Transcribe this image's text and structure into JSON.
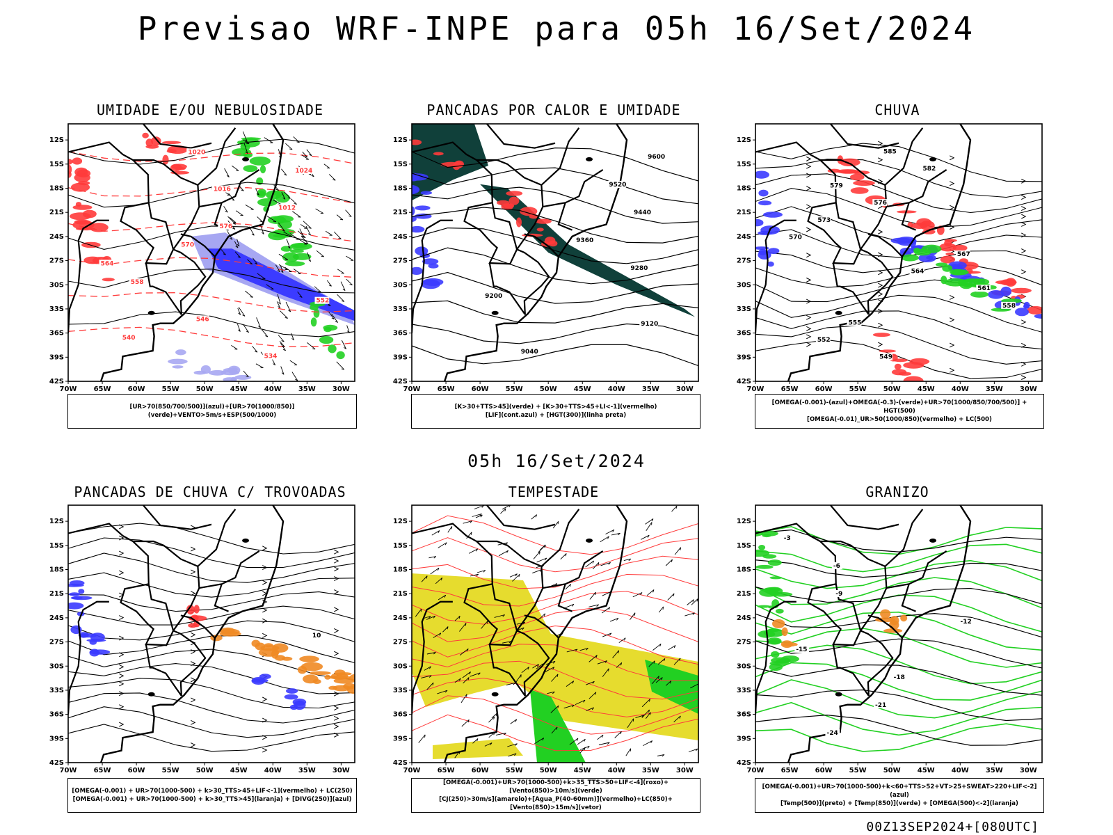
{
  "main_title": "Previsao WRF-INPE  para 05h 16/Set/2024",
  "mid_title": "05h 16/Set/2024",
  "footer": "00Z13SEP2024+[080UTC]",
  "chart_data": [
    {
      "type": "map",
      "title": "UMIDADE E/OU NEBULOSIDADE",
      "x_ticks": [
        "70W",
        "65W",
        "60W",
        "55W",
        "50W",
        "45W",
        "40W",
        "35W",
        "30W"
      ],
      "y_ticks": [
        "12S",
        "15S",
        "18S",
        "21S",
        "24S",
        "27S",
        "30S",
        "33S",
        "36S",
        "39S",
        "42S"
      ],
      "contour_labels": [
        "1020",
        "1024",
        "1016",
        "1012",
        "576",
        "570",
        "564",
        "558",
        "552",
        "546",
        "540",
        "534"
      ],
      "legend": [
        "[UR>70(850/700/500)](azul)+[UR>70(1000/850)](verde)+VENTO>5m/s+ESP(500/1000)"
      ]
    },
    {
      "type": "map",
      "title": "PANCADAS POR CALOR E UMIDADE",
      "x_ticks": [
        "70W",
        "65W",
        "60W",
        "55W",
        "50W",
        "45W",
        "40W",
        "35W",
        "30W"
      ],
      "y_ticks": [
        "12S",
        "15S",
        "18S",
        "21S",
        "24S",
        "27S",
        "30S",
        "33S",
        "36S",
        "39S",
        "42S"
      ],
      "contour_labels": [
        "9600",
        "9520",
        "9440",
        "9360",
        "9280",
        "9200",
        "9120",
        "9040"
      ],
      "legend": [
        "[K>30+TTS>45](verde) + [K>30+TTS>45+LI<-1](vermelho)",
        "[LIF](cont.azul) + [HGT(300)](linha preta)"
      ]
    },
    {
      "type": "map",
      "title": "CHUVA",
      "x_ticks": [
        "70W",
        "65W",
        "60W",
        "55W",
        "50W",
        "45W",
        "40W",
        "35W",
        "30W"
      ],
      "y_ticks": [
        "12S",
        "15S",
        "18S",
        "21S",
        "24S",
        "27S",
        "30S",
        "33S",
        "36S",
        "39S",
        "42S"
      ],
      "contour_labels": [
        "585",
        "582",
        "579",
        "576",
        "573",
        "570",
        "567",
        "564",
        "561",
        "558",
        "555",
        "552",
        "549"
      ],
      "legend": [
        "[OMEGA(-0.001)-(azul)+OMEGA(-0.3)-(verde)+UR>70(1000/850/700/500)] + HGT(500)",
        "[OMEGA(-0.01)_UR>50(1000/850)(vermelho) + LC(500)"
      ]
    },
    {
      "type": "map",
      "title": "PANCADAS DE CHUVA C/ TROVOADAS",
      "x_ticks": [
        "70W",
        "65W",
        "60W",
        "55W",
        "50W",
        "45W",
        "40W",
        "35W",
        "30W"
      ],
      "y_ticks": [
        "12S",
        "15S",
        "18S",
        "21S",
        "24S",
        "27S",
        "30S",
        "33S",
        "36S",
        "39S",
        "42S"
      ],
      "contour_labels": [
        "10"
      ],
      "legend": [
        "[OMEGA(-0.001) + UR>70(1000-500) + k>30_TTS>45+LIF<-1](vermelho) + LC(250)",
        "[OMEGA(-0.001) + UR>70(1000-500) + k>30_TTS>45](laranja) + [DIVG(250)](azul)"
      ]
    },
    {
      "type": "map",
      "title": "TEMPESTADE",
      "x_ticks": [
        "70W",
        "65W",
        "60W",
        "55W",
        "50W",
        "45W",
        "40W",
        "35W",
        "30W"
      ],
      "y_ticks": [
        "12S",
        "15S",
        "18S",
        "21S",
        "24S",
        "27S",
        "30S",
        "33S",
        "36S",
        "39S",
        "42S"
      ],
      "contour_labels": [],
      "legend": [
        "[OMEGA(-0.001)+UR>70(1000-500)+k>35_TTS>50+LIF<-4](roxo)+[Vento(850)>10m/s](verde)",
        "[CJ(250)>30m/s](amarelo)+[Agua_P(40-60mm)](vermelho)+LC(850)+[Vento(850)>15m/s](vetor)"
      ]
    },
    {
      "type": "map",
      "title": "GRANIZO",
      "x_ticks": [
        "70W",
        "65W",
        "60W",
        "55W",
        "50W",
        "45W",
        "40W",
        "35W",
        "30W"
      ],
      "y_ticks": [
        "12S",
        "15S",
        "18S",
        "21S",
        "24S",
        "27S",
        "30S",
        "33S",
        "36S",
        "39S",
        "42S"
      ],
      "contour_labels": [
        "-3",
        "-6",
        "-9",
        "-12",
        "-15",
        "-18",
        "-21",
        "-24"
      ],
      "legend": [
        "[OMEGA(-0.001)+UR>70(1000-500)+k<60+TTS>52+VT>25+SWEAT>220+LIF<-2](azul)",
        "[Temp(500)](preto) + [Temp(850)](verde) + [OMEGA(500)<-2](laranja)"
      ]
    }
  ],
  "colors": {
    "blue": "#3b3bff",
    "lightblue": "#a7a7f2",
    "green": "#22d022",
    "red": "#ff3b3b",
    "orange": "#f08a24",
    "darkteal": "#10403a",
    "yellow": "#e6dc2e",
    "contour": "#000000"
  }
}
